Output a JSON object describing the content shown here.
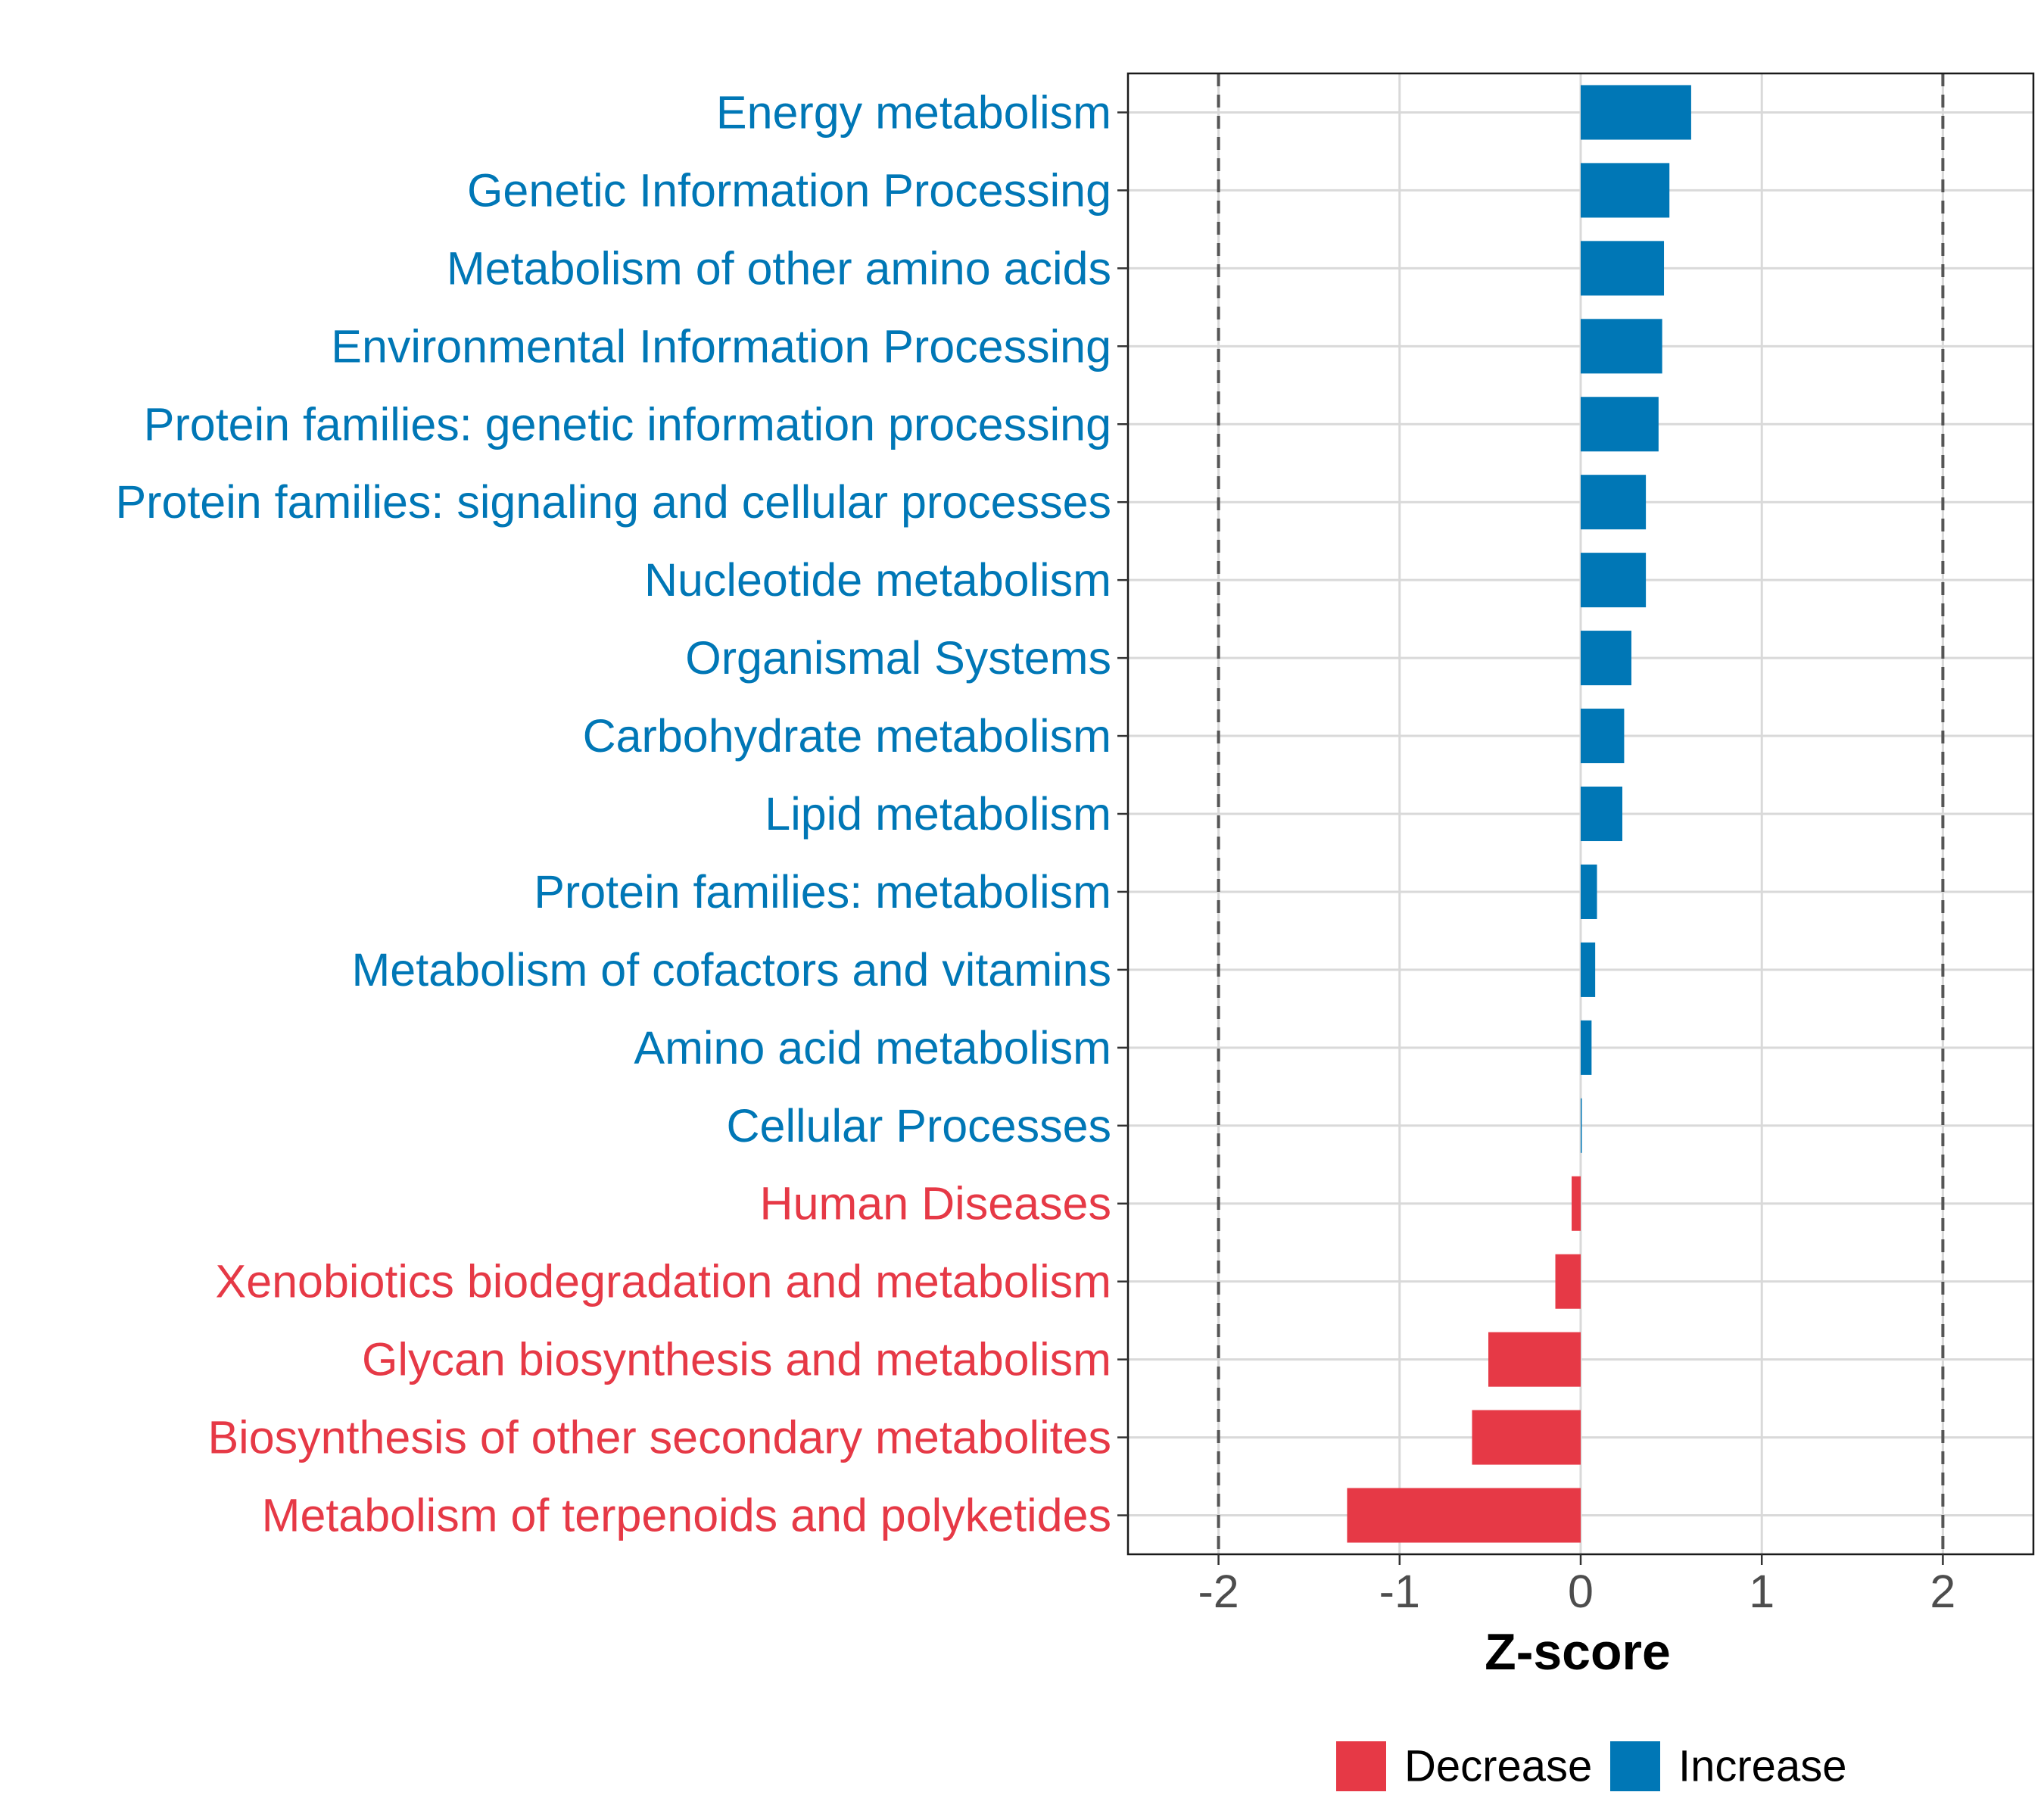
{
  "chart_data": {
    "type": "bar",
    "orientation": "horizontal",
    "title": "",
    "xlabel": "Z-score",
    "ylabel": "",
    "xlim": [
      -2.5,
      2.5
    ],
    "x_ticks": [
      -2,
      -1,
      0,
      1,
      2
    ],
    "reference_lines": [
      -2,
      2
    ],
    "grid": true,
    "legend_position": "bottom",
    "colors": {
      "Decrease": "#e63946",
      "Increase": "#0077b6",
      "grid": "#d9d9d9",
      "reference": "#555555"
    },
    "legend": [
      {
        "name": "Decrease",
        "color": "#e63946"
      },
      {
        "name": "Increase",
        "color": "#0077b6"
      }
    ],
    "categories": [
      "Energy metabolism",
      "Genetic Information Processing",
      "Metabolism of other amino acids",
      "Environmental Information Processing",
      "Protein families: genetic information processing",
      "Protein families: signaling and cellular processes",
      "Nucleotide metabolism",
      "Organismal Systems",
      "Carbohydrate metabolism",
      "Lipid metabolism",
      "Protein families: metabolism",
      "Metabolism of cofactors and vitamins",
      "Amino acid metabolism",
      "Cellular Processes",
      "Human Diseases",
      "Xenobiotics biodegradation and metabolism",
      "Glycan biosynthesis and metabolism",
      "Biosynthesis of other secondary metabolites",
      "Metabolism of terpenoids and polyketides"
    ],
    "values": [
      0.61,
      0.49,
      0.46,
      0.45,
      0.43,
      0.36,
      0.36,
      0.28,
      0.24,
      0.23,
      0.09,
      0.08,
      0.06,
      0.005,
      -0.05,
      -0.14,
      -0.51,
      -0.6,
      -1.29
    ],
    "group": [
      "Increase",
      "Increase",
      "Increase",
      "Increase",
      "Increase",
      "Increase",
      "Increase",
      "Increase",
      "Increase",
      "Increase",
      "Increase",
      "Increase",
      "Increase",
      "Increase",
      "Decrease",
      "Decrease",
      "Decrease",
      "Decrease",
      "Decrease"
    ]
  }
}
